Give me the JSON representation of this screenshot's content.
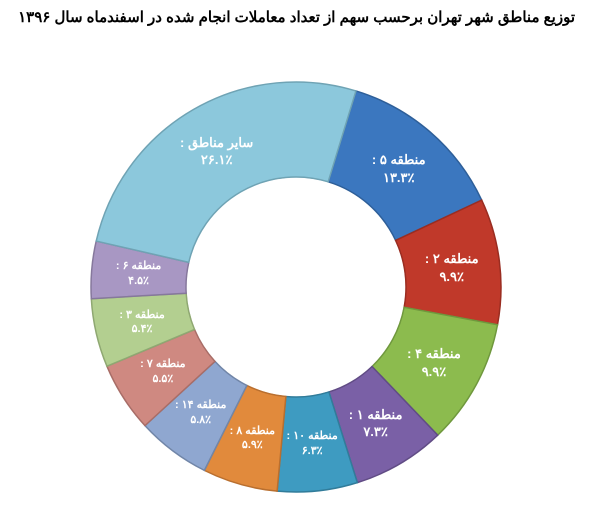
{
  "chart": {
    "type": "donut",
    "title": "توزیع مناطق شهر تهران برحسب سهم از تعداد معاملات انجام شده در اسفندماه سال ۱۳۹۶",
    "title_fontsize": 15,
    "title_color": "#000000",
    "background_color": "#ffffff",
    "outer_radius": 205,
    "inner_radius": 110,
    "center_fill": "#ffffff",
    "label_color": "#ffffff",
    "label_fontsize": 13,
    "label_fontsize_small": 11,
    "start_angle_deg": -73,
    "slices": [
      {
        "name": "منطقه ۵ :",
        "value": 13.3,
        "display": "۱۳.۳٪",
        "color": "#3b77bf",
        "border": "#2e5f99"
      },
      {
        "name": "منطقه ۲ :",
        "value": 9.9,
        "display": "۹.۹٪",
        "color": "#c0392a",
        "border": "#9a2d21"
      },
      {
        "name": "منطقه ۴ :",
        "value": 9.9,
        "display": "۹.۹٪",
        "color": "#8cbb4e",
        "border": "#6f983d"
      },
      {
        "name": "منطقه ۱ :",
        "value": 7.3,
        "display": "۷.۳٪",
        "color": "#7a60a6",
        "border": "#614c85"
      },
      {
        "name": "منطقه ۱۰ :",
        "value": 6.3,
        "display": "۶.۳٪",
        "color": "#3e9bc1",
        "border": "#317c9a"
      },
      {
        "name": "منطقه ۸ :",
        "value": 5.9,
        "display": "۵.۹٪",
        "color": "#e18a3c",
        "border": "#b96f2f"
      },
      {
        "name": "منطقه ۱۴ :",
        "value": 5.8,
        "display": "۵.۸٪",
        "color": "#8fa7d0",
        "border": "#7186a8"
      },
      {
        "name": "منطقه ۷ :",
        "value": 5.5,
        "display": "۵.۵٪",
        "color": "#cf8981",
        "border": "#a86d67"
      },
      {
        "name": "منطقه ۳ :",
        "value": 5.4,
        "display": "۵.۴٪",
        "color": "#b3cf90",
        "border": "#8fa872"
      },
      {
        "name": "منطقه ۶ :",
        "value": 4.5,
        "display": "۴.۵٪",
        "color": "#a897c3",
        "border": "#86789c"
      },
      {
        "name": "سایر مناطق :",
        "value": 26.1,
        "display": "۲۶.۱٪",
        "color": "#8cc8dc",
        "border": "#6fa3b4"
      }
    ]
  }
}
